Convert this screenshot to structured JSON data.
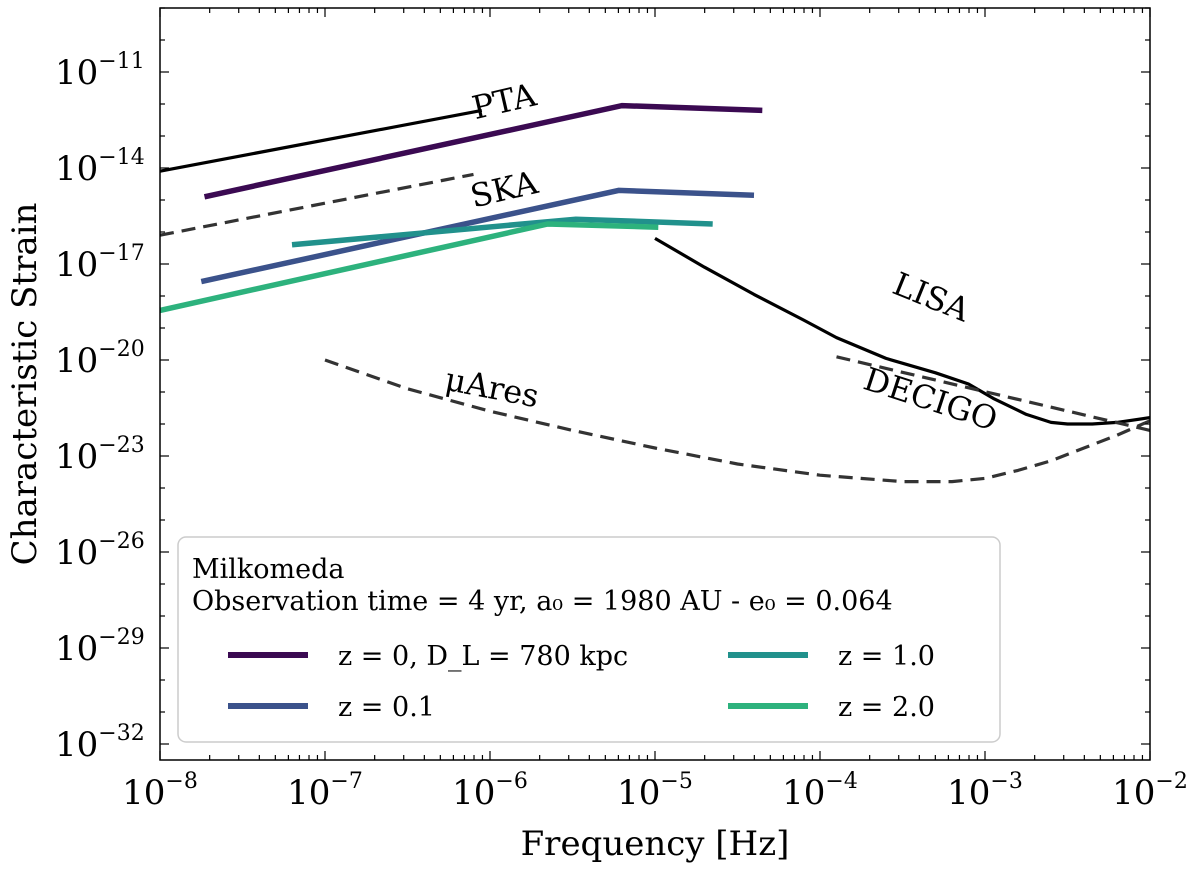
{
  "chart_data": {
    "type": "line",
    "xlabel": "Frequency [Hz]",
    "ylabel": "Characteristic Strain",
    "xscale": "log",
    "yscale": "log",
    "xlim_exp": [
      -8,
      -2
    ],
    "ylim_exp": [
      -32.5,
      -9
    ],
    "x_ticks": [
      {
        "base": "10",
        "exp": "−8"
      },
      {
        "base": "10",
        "exp": "−7"
      },
      {
        "base": "10",
        "exp": "−6"
      },
      {
        "base": "10",
        "exp": "−5"
      },
      {
        "base": "10",
        "exp": "−4"
      },
      {
        "base": "10",
        "exp": "−3"
      },
      {
        "base": "10",
        "exp": "−2"
      }
    ],
    "y_ticks": [
      {
        "base": "10",
        "exp": "−11"
      },
      {
        "base": "10",
        "exp": "−14"
      },
      {
        "base": "10",
        "exp": "−17"
      },
      {
        "base": "10",
        "exp": "−20"
      },
      {
        "base": "10",
        "exp": "−23"
      },
      {
        "base": "10",
        "exp": "−26"
      },
      {
        "base": "10",
        "exp": "−29"
      },
      {
        "base": "10",
        "exp": "−32"
      }
    ],
    "x_tick_values": [
      -8,
      -7,
      -6,
      -5,
      -4,
      -3,
      -2
    ],
    "y_tick_values": [
      -11,
      -14,
      -17,
      -20,
      -23,
      -26,
      -29,
      -32
    ],
    "sensitivity_curves": [
      {
        "name": "PTA",
        "style": "solid",
        "color": "#000000",
        "log_f": [
          -8,
          -6.05
        ],
        "log_h": [
          -14.1,
          -12.2
        ]
      },
      {
        "name": "SKA",
        "style": "dashed",
        "color": "#333333",
        "log_f": [
          -8,
          -6.1
        ],
        "log_h": [
          -16.1,
          -14.2
        ]
      },
      {
        "name": "LISA",
        "style": "solid",
        "color": "#000000",
        "log_f": [
          -5.0,
          -4.7,
          -4.4,
          -4.1,
          -3.9,
          -3.6,
          -3.3,
          -3.1,
          -2.95,
          -2.75,
          -2.6,
          -2.5,
          -2.35,
          -2.2,
          -2.0
        ],
        "log_h": [
          -16.2,
          -17.1,
          -17.95,
          -18.75,
          -19.3,
          -19.95,
          -20.4,
          -20.75,
          -21.2,
          -21.7,
          -21.95,
          -22.0,
          -22.0,
          -21.95,
          -21.8
        ]
      },
      {
        "name": "DECIGO",
        "style": "dashed",
        "color": "#333333",
        "log_f": [
          -3.9,
          -2.0
        ],
        "log_h": [
          -19.9,
          -22.2
        ]
      },
      {
        "name": "μAres",
        "style": "dashed",
        "color": "#333333",
        "log_f": [
          -7.0,
          -6.5,
          -6.0,
          -5.5,
          -5.0,
          -4.5,
          -4.0,
          -3.5,
          -3.2,
          -3.0,
          -2.8,
          -2.6,
          -2.4,
          -2.2,
          -2.0
        ],
        "log_h": [
          -20.0,
          -20.9,
          -21.6,
          -22.2,
          -22.75,
          -23.25,
          -23.6,
          -23.8,
          -23.8,
          -23.7,
          -23.45,
          -23.15,
          -22.75,
          -22.35,
          -21.9
        ]
      }
    ],
    "curve_labels": [
      {
        "text": "PTA",
        "log_f": -5.9,
        "log_h": -12.25,
        "rotate": -13
      },
      {
        "text": "SKA",
        "log_f": -5.9,
        "log_h": -15.0,
        "rotate": -13
      },
      {
        "text": "LISA",
        "log_f": -3.35,
        "log_h": -18.35,
        "rotate": 22
      },
      {
        "text": "DECIGO",
        "log_f": -3.35,
        "log_h": -21.55,
        "rotate": 18
      },
      {
        "text": "μAres",
        "log_f": -6.0,
        "log_h": -21.2,
        "rotate": 11
      }
    ],
    "series": [
      {
        "name": "z = 0, D_L = 780 kpc",
        "color": "#3b0a52",
        "log_f": [
          -7.73,
          -5.2,
          -4.35
        ],
        "log_h": [
          -14.9,
          -12.05,
          -12.2
        ]
      },
      {
        "name": "z = 0.1",
        "color": "#3b528b",
        "log_f": [
          -7.75,
          -5.22,
          -4.4
        ],
        "log_h": [
          -17.55,
          -14.7,
          -14.85
        ]
      },
      {
        "name": "z = 1.0",
        "color": "#21918c",
        "log_f": [
          -7.2,
          -5.48,
          -4.65
        ],
        "log_h": [
          -16.4,
          -15.6,
          -15.75
        ]
      },
      {
        "name": "z = 2.0",
        "color": "#2db27d",
        "log_f": [
          -8.0,
          -5.65,
          -4.98
        ],
        "log_h": [
          -18.45,
          -15.75,
          -15.85
        ]
      }
    ],
    "legend": {
      "title_line1": "Milkomeda",
      "title_line2": "Observation time = 4 yr, a₀ = 1980 AU - e₀ = 0.064",
      "entries": [
        "z = 0, D_L = 780 kpc",
        "z = 0.1",
        "z = 1.0",
        "z = 2.0"
      ],
      "placement": "lower-left"
    }
  }
}
